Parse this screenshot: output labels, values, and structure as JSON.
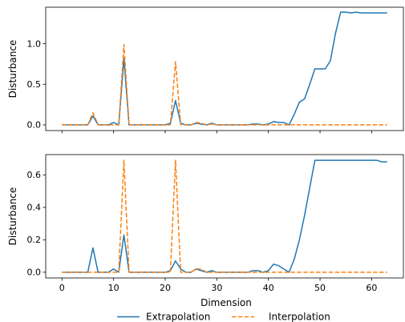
{
  "chart_data": {
    "type": "line",
    "xlabel": "Dimension",
    "legend": {
      "placement": "bottom-center",
      "entries": [
        "Extrapolation",
        "Interpolation"
      ]
    },
    "series_styles": [
      {
        "name": "Extrapolation",
        "color": "#1f77b4",
        "dash": "solid"
      },
      {
        "name": "Interpolation",
        "color": "#ff7f0e",
        "dash": "dashed"
      }
    ],
    "x_ticks": [
      0,
      10,
      20,
      30,
      40,
      50,
      60
    ],
    "x_ticks_labels": [
      "0",
      "10",
      "20",
      "30",
      "40",
      "50",
      "60"
    ],
    "xlim": [
      -3.15,
      66.15
    ],
    "grid": false,
    "panels": [
      {
        "ylabel": "Disturbance",
        "ylim": [
          -0.07,
          1.45
        ],
        "y_ticks": [
          0.0,
          0.5,
          1.0
        ],
        "y_ticks_labels": [
          "0.0",
          "0.5",
          "1.0"
        ],
        "series": [
          {
            "name": "Extrapolation",
            "values": [
              0.0,
              0.0,
              0.0,
              0.0,
              0.0,
              0.0,
              0.11,
              0.0,
              0.0,
              0.0,
              0.03,
              0.0,
              0.82,
              0.0,
              0.0,
              0.0,
              0.0,
              0.0,
              0.0,
              0.0,
              0.0,
              0.02,
              0.3,
              0.02,
              0.0,
              0.0,
              0.02,
              0.01,
              0.0,
              0.02,
              0.0,
              0.0,
              0.0,
              0.0,
              0.0,
              0.0,
              0.0,
              0.01,
              0.01,
              0.0,
              0.01,
              0.04,
              0.03,
              0.03,
              0.0,
              0.13,
              0.28,
              0.32,
              0.5,
              0.69,
              0.69,
              0.69,
              0.79,
              1.13,
              1.39,
              1.39,
              1.38,
              1.39,
              1.38,
              1.38,
              1.38,
              1.38,
              1.38,
              1.38
            ]
          },
          {
            "name": "Interpolation",
            "values": [
              0.0,
              0.0,
              0.0,
              0.0,
              0.0,
              0.0,
              0.15,
              0.0,
              0.0,
              0.0,
              0.0,
              0.0,
              0.99,
              0.0,
              0.0,
              0.0,
              0.0,
              0.0,
              0.0,
              0.0,
              0.0,
              0.0,
              0.78,
              0.0,
              0.0,
              0.0,
              0.03,
              0.02,
              0.0,
              0.01,
              0.0,
              0.0,
              0.0,
              0.0,
              0.0,
              0.0,
              0.0,
              0.0,
              0.0,
              0.0,
              0.0,
              0.0,
              0.0,
              0.0,
              0.0,
              0.0,
              0.0,
              0.0,
              0.0,
              0.0,
              0.0,
              0.0,
              0.0,
              0.0,
              0.0,
              0.0,
              0.0,
              0.0,
              0.0,
              0.0,
              0.0,
              0.0,
              0.0,
              0.0
            ]
          }
        ]
      },
      {
        "ylabel": "Disturbance",
        "ylim": [
          -0.035,
          0.725
        ],
        "y_ticks": [
          0.0,
          0.2,
          0.4,
          0.6
        ],
        "y_ticks_labels": [
          "0.0",
          "0.2",
          "0.4",
          "0.6"
        ],
        "series": [
          {
            "name": "Extrapolation",
            "values": [
              0.0,
              0.0,
              0.0,
              0.0,
              0.0,
              0.0,
              0.15,
              0.0,
              0.0,
              0.0,
              0.02,
              0.0,
              0.23,
              0.0,
              0.0,
              0.0,
              0.0,
              0.0,
              0.0,
              0.0,
              0.0,
              0.01,
              0.07,
              0.02,
              0.0,
              0.0,
              0.02,
              0.01,
              0.0,
              0.01,
              0.0,
              0.0,
              0.0,
              0.0,
              0.0,
              0.0,
              0.0,
              0.01,
              0.01,
              0.0,
              0.01,
              0.05,
              0.04,
              0.02,
              0.0,
              0.08,
              0.2,
              0.35,
              0.52,
              0.69,
              0.69,
              0.69,
              0.69,
              0.69,
              0.69,
              0.69,
              0.69,
              0.69,
              0.69,
              0.69,
              0.69,
              0.69,
              0.68,
              0.68
            ]
          },
          {
            "name": "Interpolation",
            "values": [
              0.0,
              0.0,
              0.0,
              0.0,
              0.0,
              0.0,
              0.0,
              0.0,
              0.0,
              0.0,
              0.0,
              0.0,
              0.69,
              0.0,
              0.0,
              0.0,
              0.0,
              0.0,
              0.0,
              0.0,
              0.0,
              0.0,
              0.69,
              0.0,
              0.0,
              0.0,
              0.02,
              0.02,
              0.0,
              0.0,
              0.0,
              0.0,
              0.0,
              0.0,
              0.0,
              0.0,
              0.0,
              0.0,
              0.0,
              0.0,
              0.0,
              0.0,
              0.0,
              0.0,
              0.0,
              0.0,
              0.0,
              0.0,
              0.0,
              0.0,
              0.0,
              0.0,
              0.0,
              0.0,
              0.0,
              0.0,
              0.0,
              0.0,
              0.0,
              0.0,
              0.0,
              0.0,
              0.0,
              0.0
            ]
          }
        ]
      }
    ]
  }
}
